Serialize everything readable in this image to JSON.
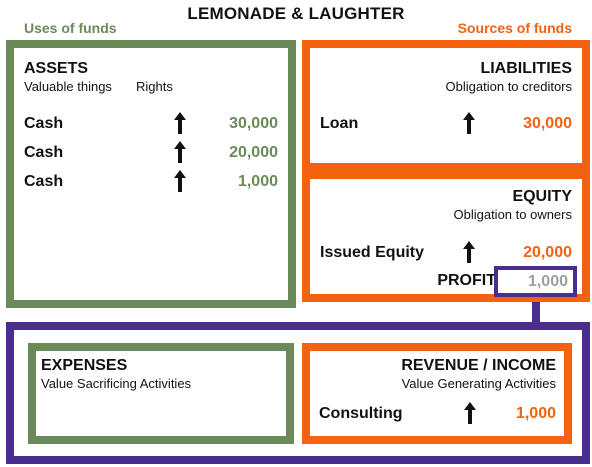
{
  "title": "LEMONADE & LAUGHTER",
  "uses_label": "Uses of funds",
  "sources_label": "Sources of funds",
  "colors": {
    "green": "#6b8a5a",
    "orange": "#f4620f",
    "purple": "#4a2e8f",
    "gray": "#9e9e9e"
  },
  "assets": {
    "heading": "ASSETS",
    "subtitle": "Valuable things",
    "rights": "Rights",
    "rows": [
      {
        "label": "Cash",
        "value": "30,000",
        "icon": "up-arrow-icon"
      },
      {
        "label": "Cash",
        "value": "20,000",
        "icon": "up-arrow-icon"
      },
      {
        "label": "Cash",
        "value": "1,000",
        "icon": "up-arrow-icon"
      }
    ]
  },
  "liabilities": {
    "heading": "LIABILITIES",
    "subtitle": "Obligation to creditors",
    "row": {
      "label": "Loan",
      "value": "30,000",
      "icon": "up-arrow-icon"
    }
  },
  "equity": {
    "heading": "EQUITY",
    "subtitle": "Obligation to owners",
    "row": {
      "label": "Issued Equity",
      "value": "20,000",
      "icon": "up-arrow-icon"
    },
    "profit_label": "PROFIT",
    "profit_value": "1,000"
  },
  "expenses": {
    "heading": "EXPENSES",
    "subtitle": "Value Sacrificing Activities"
  },
  "revenue": {
    "heading": "REVENUE / INCOME",
    "subtitle": "Value Generating Activities",
    "row": {
      "label": "Consulting",
      "value": "1,000",
      "icon": "up-arrow-icon"
    }
  }
}
